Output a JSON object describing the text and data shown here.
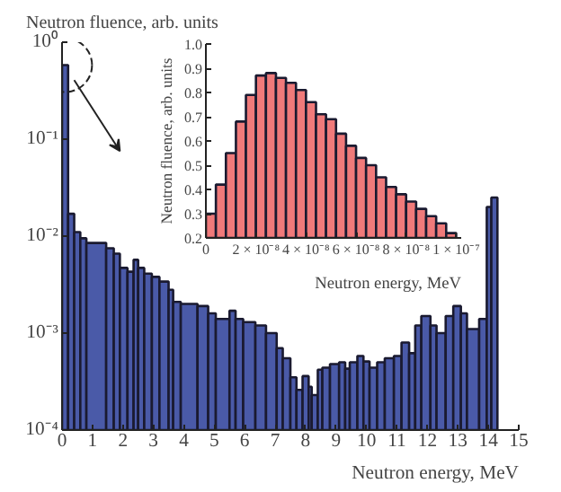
{
  "chart_data": [
    {
      "type": "histogram",
      "xlabel": "Neutron energy, MeV",
      "ylabel": "Neutron fluence, arb. units",
      "log": "y",
      "grid": false,
      "color": "#4a5aa8",
      "bins": [
        0,
        0.2,
        0.4,
        0.6,
        0.8,
        1.45,
        1.7,
        1.9,
        2.15,
        2.35,
        2.5,
        2.7,
        2.95,
        3.2,
        3.5,
        3.65,
        3.9,
        4.45,
        4.8,
        5.05,
        5.5,
        5.7,
        5.95,
        6.35,
        6.7,
        7.05,
        7.25,
        7.5,
        7.7,
        7.9,
        8.1,
        8.2,
        8.4,
        8.55,
        8.8,
        9.1,
        9.3,
        9.45,
        9.7,
        9.9,
        10.1,
        10.35,
        10.6,
        10.9,
        11.15,
        11.4,
        11.6,
        11.8,
        12.1,
        12.3,
        12.6,
        12.85,
        13.1,
        13.3,
        13.7,
        13.95,
        14.1,
        14.3
      ],
      "values": [
        0.58,
        0.017,
        0.011,
        0.0095,
        0.0085,
        0.0075,
        0.0066,
        0.0047,
        0.0043,
        0.0057,
        0.0047,
        0.0041,
        0.0038,
        0.0034,
        0.0028,
        0.0021,
        0.002,
        0.0019,
        0.0016,
        0.0014,
        0.0017,
        0.0014,
        0.0013,
        0.0012,
        0.001,
        0.0007,
        0.00055,
        0.00035,
        0.00026,
        0.00036,
        0.00028,
        0.00023,
        0.00042,
        0.00044,
        0.00048,
        0.0005,
        0.00043,
        0.0005,
        0.00058,
        0.00051,
        0.00044,
        0.0005,
        0.00055,
        0.00058,
        0.0008,
        0.00062,
        0.0012,
        0.0015,
        0.0012,
        0.001,
        0.0015,
        0.0019,
        0.0016,
        0.0011,
        0.0014,
        0.02,
        0.025
      ],
      "xlim": [
        0,
        15
      ],
      "xticks": [
        0,
        1,
        2,
        3,
        4,
        5,
        6,
        7,
        8,
        9,
        10,
        11,
        12,
        13,
        14,
        15
      ],
      "ylim": [
        0.0001,
        1
      ],
      "yticks": [
        {
          "value": 0.0001,
          "label": "10⁻⁴"
        },
        {
          "value": 0.001,
          "label": "10⁻³"
        },
        {
          "value": 0.01,
          "label": "10⁻²"
        },
        {
          "value": 0.1,
          "label": "10⁻¹"
        },
        {
          "value": 1,
          "label": "10⁰"
        }
      ]
    },
    {
      "type": "histogram",
      "xlabel": "Neutron energy, MeV",
      "ylabel": "Neutron fluence, arb. units",
      "grid": false,
      "color": "#f07a7a",
      "bins": [
        0,
        4e-09,
        8e-09,
        1.2e-08,
        1.6e-08,
        2e-08,
        2.4e-08,
        2.8e-08,
        3.2e-08,
        3.6e-08,
        4e-08,
        4.4e-08,
        4.8e-08,
        5.2e-08,
        5.6e-08,
        6e-08,
        6.4e-08,
        6.8e-08,
        7.2e-08,
        7.6e-08,
        8e-08,
        8.4e-08,
        8.8e-08,
        9.2e-08,
        9.6e-08,
        1e-07
      ],
      "values": [
        0.3,
        0.42,
        0.55,
        0.68,
        0.79,
        0.87,
        0.88,
        0.86,
        0.84,
        0.81,
        0.76,
        0.71,
        0.69,
        0.63,
        0.58,
        0.53,
        0.5,
        0.45,
        0.41,
        0.38,
        0.35,
        0.32,
        0.29,
        0.26,
        0.22
      ],
      "xlim": [
        0,
        1.02e-07
      ],
      "xticks": [
        0,
        {
          "value": 2e-08,
          "label": "2 × 10⁻⁸"
        },
        {
          "value": 4e-08,
          "label": "4 × 10⁻⁸"
        },
        {
          "value": 6e-08,
          "label": "6 × 10⁻⁸"
        },
        {
          "value": 8e-08,
          "label": "8 × 10⁻⁸"
        },
        {
          "value": 1e-07,
          "label": "1 × 10⁻⁷"
        }
      ],
      "ylim": [
        0.2,
        1.0
      ],
      "yticks": [
        0.2,
        0.3,
        0.4,
        0.5,
        0.6,
        0.7,
        0.8,
        0.9,
        {
          "value": 1.0,
          "label": "1.0"
        }
      ]
    }
  ]
}
